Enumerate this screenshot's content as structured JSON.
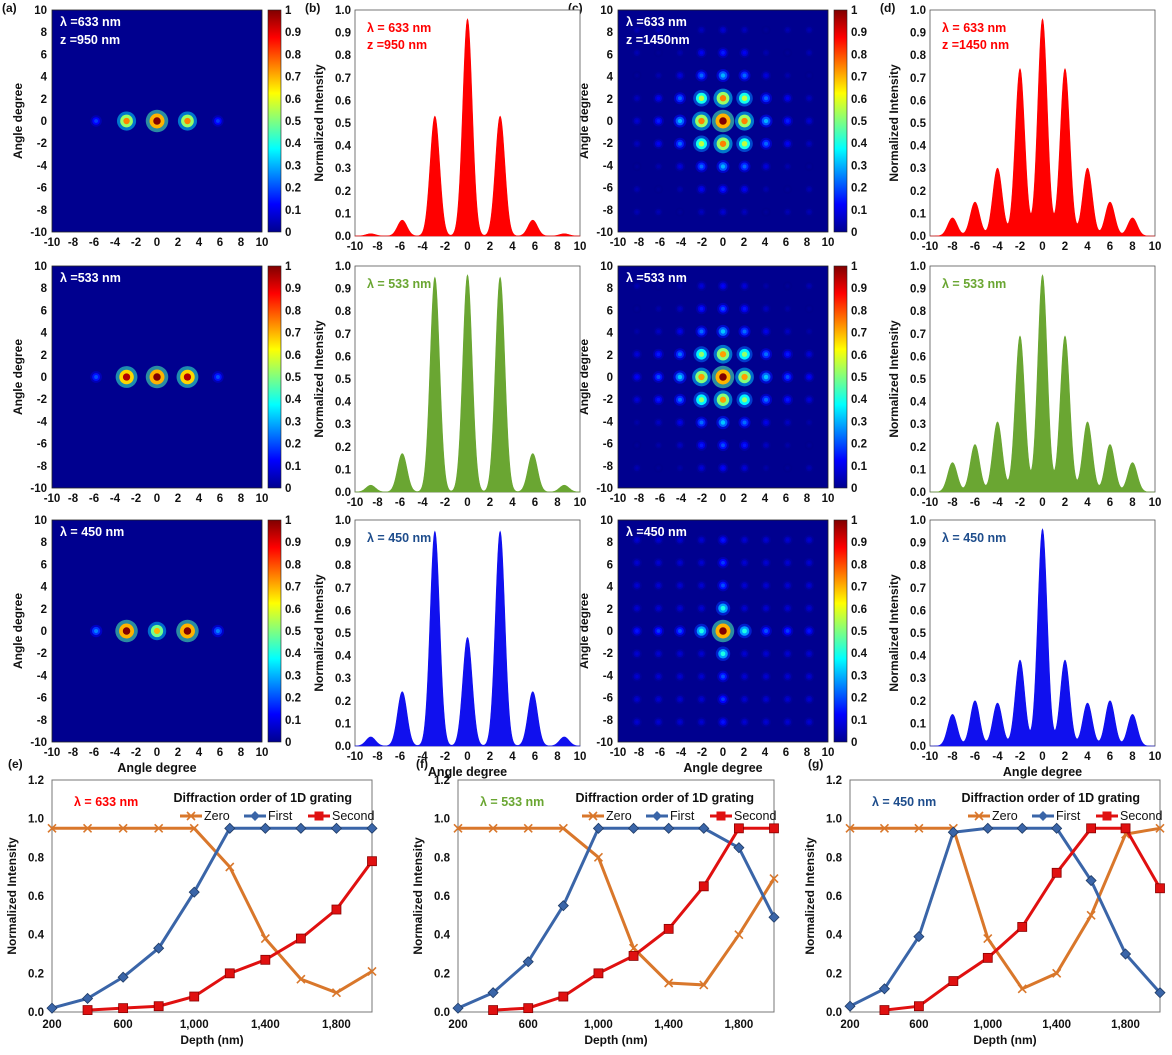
{
  "figure": {
    "maps": [
      {
        "label": "(a)",
        "row": 0,
        "xlabel": "",
        "ylabel": "Angle degree",
        "texts": [
          "λ =633 nm",
          "z =950 nm"
        ],
        "text_color": "#ffffff",
        "kind": "1d",
        "n": 2,
        "peaks": [
          [
            0,
            1.0
          ],
          [
            -2.9,
            0.75
          ],
          [
            2.9,
            0.75
          ],
          [
            -5.8,
            0.18
          ],
          [
            5.8,
            0.18
          ]
        ]
      },
      {
        "label": "",
        "row": 1,
        "xlabel": "",
        "ylabel": "Angle degree",
        "texts": [
          "λ =533 nm"
        ],
        "text_color": "#ffffff",
        "kind": "1d",
        "n": 2,
        "peaks": [
          [
            0,
            1.0
          ],
          [
            -2.9,
            0.95
          ],
          [
            2.9,
            0.95
          ],
          [
            -5.8,
            0.2
          ],
          [
            5.8,
            0.2
          ]
        ]
      },
      {
        "label": "",
        "row": 2,
        "xlabel": "Angle degree",
        "ylabel": "Angle degree",
        "texts": [
          "λ = 450 nm"
        ],
        "text_color": "#ffffff",
        "kind": "1d",
        "n": 2,
        "peaks": [
          [
            0,
            0.7
          ],
          [
            -2.9,
            1.0
          ],
          [
            2.9,
            1.0
          ],
          [
            -5.8,
            0.25
          ],
          [
            5.8,
            0.25
          ]
        ]
      },
      {
        "label": "(c)",
        "row": 0,
        "xlabel": "",
        "ylabel": "Angle degree",
        "texts": [
          "λ =633 nm",
          "z =1450nm"
        ],
        "text_color": "#ffffff",
        "kind": "2d",
        "n": 1,
        "profile": [
          1.0,
          0.75,
          0.3,
          0.15,
          0.08
        ]
      },
      {
        "label": "",
        "row": 1,
        "xlabel": "",
        "ylabel": "Angle degree",
        "texts": [
          "λ =533 nm"
        ],
        "text_color": "#ffffff",
        "kind": "2d",
        "n": 1,
        "profile": [
          1.0,
          0.72,
          0.32,
          0.2,
          0.12
        ]
      },
      {
        "label": "",
        "row": 2,
        "xlabel": "Angle degree",
        "ylabel": "Angle degree",
        "texts": [
          "λ =450 nm"
        ],
        "text_color": "#ffffff",
        "kind": "cross",
        "n": 1,
        "profile": [
          1.0,
          0.4,
          0.2,
          0.18,
          0.14
        ]
      }
    ],
    "colorbar_ticks": [
      "0",
      "0.1",
      "0.2",
      "0.3",
      "0.4",
      "0.5",
      "0.6",
      "0.7",
      "0.8",
      "0.9",
      "1"
    ],
    "profiles": [
      {
        "label": "(b)",
        "row": 0,
        "color": "#ff0000",
        "ylabel": "Normalized Intensity",
        "xlabel": "",
        "texts": [
          "λ = 633 nm",
          "z =950 nm"
        ],
        "text_color": "#ff0000",
        "tick_step": 2,
        "peaks": [
          [
            0,
            0.96
          ],
          [
            -2.9,
            0.53
          ],
          [
            2.9,
            0.53
          ],
          [
            -5.8,
            0.07
          ],
          [
            5.8,
            0.07
          ],
          [
            -8.6,
            0.01
          ],
          [
            8.6,
            0.01
          ]
        ]
      },
      {
        "label": "",
        "row": 1,
        "color": "#6aa632",
        "ylabel": "Normalized Intensity",
        "xlabel": "",
        "texts": [
          "λ = 533 nm"
        ],
        "text_color": "#6aa632",
        "tick_step": 2,
        "peaks": [
          [
            0,
            0.96
          ],
          [
            -2.9,
            0.95
          ],
          [
            2.9,
            0.95
          ],
          [
            -5.8,
            0.17
          ],
          [
            5.8,
            0.17
          ],
          [
            -8.6,
            0.03
          ],
          [
            8.6,
            0.03
          ]
        ]
      },
      {
        "label": "",
        "row": 2,
        "color": "#1010ee",
        "ylabel": "Normalized Intensity",
        "xlabel": "Angle degree",
        "texts": [
          "λ = 450 nm"
        ],
        "text_color": "#1e4d8c",
        "tick_step": 2,
        "peaks": [
          [
            0,
            0.48
          ],
          [
            -2.9,
            0.95
          ],
          [
            2.9,
            0.95
          ],
          [
            -5.8,
            0.24
          ],
          [
            5.8,
            0.24
          ],
          [
            -8.6,
            0.04
          ],
          [
            8.6,
            0.04
          ]
        ]
      },
      {
        "label": "(d)",
        "row": 0,
        "color": "#ff0000",
        "ylabel": "Normalized Intensity",
        "xlabel": "",
        "texts": [
          "λ = 633 nm",
          "z =1450 nm"
        ],
        "text_color": "#ff0000",
        "tick_step": 2,
        "peaks": [
          [
            0,
            0.96
          ],
          [
            -2,
            0.74
          ],
          [
            2,
            0.74
          ],
          [
            -4,
            0.3
          ],
          [
            4,
            0.3
          ],
          [
            -6,
            0.15
          ],
          [
            6,
            0.15
          ],
          [
            -8,
            0.08
          ],
          [
            8,
            0.08
          ]
        ]
      },
      {
        "label": "",
        "row": 1,
        "color": "#6aa632",
        "ylabel": "Normalized Intensity",
        "xlabel": "",
        "texts": [
          "λ = 533 nm"
        ],
        "text_color": "#6aa632",
        "tick_step": 2,
        "peaks": [
          [
            0,
            0.96
          ],
          [
            -2,
            0.69
          ],
          [
            2,
            0.69
          ],
          [
            -4,
            0.31
          ],
          [
            4,
            0.31
          ],
          [
            -6,
            0.21
          ],
          [
            6,
            0.21
          ],
          [
            -8,
            0.13
          ],
          [
            8,
            0.13
          ]
        ]
      },
      {
        "label": "",
        "row": 2,
        "color": "#1010ee",
        "ylabel": "Normalized Intensity",
        "xlabel": "Angle degree",
        "texts": [
          "λ = 450 nm"
        ],
        "text_color": "#1e4d8c",
        "tick_step": 2,
        "peaks": [
          [
            0,
            0.96
          ],
          [
            -2,
            0.38
          ],
          [
            2,
            0.38
          ],
          [
            -4,
            0.19
          ],
          [
            4,
            0.19
          ],
          [
            -6,
            0.2
          ],
          [
            6,
            0.2
          ],
          [
            -8,
            0.14
          ],
          [
            8,
            0.14
          ]
        ]
      }
    ],
    "grating_legend_title": "Diffraction order of 1D grating",
    "grating_series_names": [
      "Zero",
      "First",
      "Second"
    ],
    "grating_colors": [
      "#d9772b",
      "#3a65a8",
      "#e01010"
    ],
    "grating_xticks": [
      "200",
      "600",
      "1,000",
      "1,400",
      "1,800"
    ],
    "grating_yticks": [
      "0.0",
      "0.2",
      "0.4",
      "0.6",
      "0.8",
      "1.0",
      "1.2"
    ],
    "grating_xlabel": "Depth (nm)",
    "grating_ylabel": "Normalized Intensity"
  },
  "chart_data": [
    {
      "type": "heatmap",
      "panel": "(a)",
      "title": "λ =633 nm, z =950 nm",
      "ylabel": "Angle degree",
      "xlim": [
        -10,
        10
      ],
      "ylim": [
        -10,
        10
      ],
      "spots_deg": [
        -5.8,
        -2.9,
        0,
        2.9,
        5.8
      ]
    },
    {
      "type": "heatmap",
      "panel": "(a)",
      "title": "λ =533 nm",
      "ylabel": "Angle degree",
      "xlim": [
        -10,
        10
      ],
      "ylim": [
        -10,
        10
      ],
      "spots_deg": [
        -5.8,
        -2.9,
        0,
        2.9,
        5.8
      ]
    },
    {
      "type": "heatmap",
      "panel": "(a)",
      "title": "λ = 450 nm",
      "xlabel": "Angle degree",
      "ylabel": "Angle degree",
      "xlim": [
        -10,
        10
      ],
      "ylim": [
        -10,
        10
      ],
      "spots_deg": [
        -5.8,
        -2.9,
        0,
        2.9,
        5.8
      ]
    },
    {
      "type": "area",
      "panel": "(b)",
      "title": "λ = 633 nm, z =950 nm",
      "ylabel": "Normalized Intensity",
      "x": [
        -8.6,
        -5.8,
        -2.9,
        0,
        2.9,
        5.8,
        8.6
      ],
      "values": [
        0.01,
        0.07,
        0.53,
        0.96,
        0.53,
        0.07,
        0.01
      ],
      "xlim": [
        -10,
        10
      ],
      "ylim": [
        0,
        1
      ]
    },
    {
      "type": "area",
      "panel": "(b)",
      "title": "λ = 533 nm",
      "ylabel": "Normalized Intensity",
      "x": [
        -8.6,
        -5.8,
        -2.9,
        0,
        2.9,
        5.8,
        8.6
      ],
      "values": [
        0.03,
        0.17,
        0.95,
        0.96,
        0.95,
        0.17,
        0.03
      ],
      "xlim": [
        -10,
        10
      ],
      "ylim": [
        0,
        1
      ]
    },
    {
      "type": "area",
      "panel": "(b)",
      "title": "λ = 450 nm",
      "xlabel": "Angle degree",
      "ylabel": "Normalized Intensity",
      "x": [
        -8.6,
        -5.8,
        -2.9,
        0,
        2.9,
        5.8,
        8.6
      ],
      "values": [
        0.04,
        0.24,
        0.95,
        0.48,
        0.95,
        0.24,
        0.04
      ],
      "xlim": [
        -10,
        10
      ],
      "ylim": [
        0,
        1
      ]
    },
    {
      "type": "heatmap",
      "panel": "(c)",
      "title": "λ =633 nm, z =1450nm",
      "ylabel": "Angle degree",
      "xlim": [
        -10,
        10
      ],
      "ylim": [
        -10,
        10
      ],
      "grid_spacing_deg": 2
    },
    {
      "type": "heatmap",
      "panel": "(c)",
      "title": "λ =533 nm",
      "ylabel": "Angle degree",
      "xlim": [
        -10,
        10
      ],
      "ylim": [
        -10,
        10
      ],
      "grid_spacing_deg": 2
    },
    {
      "type": "heatmap",
      "panel": "(c)",
      "title": "λ =450 nm",
      "xlabel": "Angle degree",
      "ylabel": "Angle degree",
      "xlim": [
        -10,
        10
      ],
      "ylim": [
        -10,
        10
      ],
      "grid_spacing_deg": 2
    },
    {
      "type": "area",
      "panel": "(d)",
      "title": "λ = 633 nm, z =1450 nm",
      "ylabel": "Normalized Intensity",
      "x": [
        -8,
        -6,
        -4,
        -2,
        0,
        2,
        4,
        6,
        8
      ],
      "values": [
        0.08,
        0.15,
        0.3,
        0.74,
        0.96,
        0.74,
        0.3,
        0.15,
        0.08
      ],
      "xlim": [
        -10,
        10
      ],
      "ylim": [
        0,
        1
      ]
    },
    {
      "type": "area",
      "panel": "(d)",
      "title": "λ = 533 nm",
      "ylabel": "Normalized Intensity",
      "x": [
        -8,
        -6,
        -4,
        -2,
        0,
        2,
        4,
        6,
        8
      ],
      "values": [
        0.13,
        0.21,
        0.31,
        0.69,
        0.96,
        0.69,
        0.31,
        0.21,
        0.13
      ],
      "xlim": [
        -10,
        10
      ],
      "ylim": [
        0,
        1
      ]
    },
    {
      "type": "area",
      "panel": "(d)",
      "title": "λ = 450 nm",
      "xlabel": "Angle degree",
      "ylabel": "Normalized Intensity",
      "x": [
        -8,
        -6,
        -4,
        -2,
        0,
        2,
        4,
        6,
        8
      ],
      "values": [
        0.14,
        0.2,
        0.19,
        0.38,
        0.96,
        0.38,
        0.19,
        0.2,
        0.14
      ],
      "xlim": [
        -10,
        10
      ],
      "ylim": [
        0,
        1
      ]
    },
    {
      "type": "line",
      "panel": "(e)",
      "title": "λ = 633 nm",
      "legend_title": "Diffraction order of 1D grating",
      "xlabel": "Depth (nm)",
      "ylabel": "Normalized Intensity",
      "xlim": [
        200,
        2000
      ],
      "ylim": [
        0,
        1.2
      ],
      "legend": "top-right",
      "series": [
        {
          "name": "Zero",
          "x": [
            200,
            400,
            600,
            800,
            1000,
            1200,
            1400,
            1600,
            1800,
            2000
          ],
          "values": [
            0.95,
            0.95,
            0.95,
            0.95,
            0.95,
            0.75,
            0.38,
            0.17,
            0.1,
            0.21
          ]
        },
        {
          "name": "First",
          "x": [
            200,
            400,
            600,
            800,
            1000,
            1200,
            1400,
            1600,
            1800,
            2000
          ],
          "values": [
            0.02,
            0.07,
            0.18,
            0.33,
            0.62,
            0.95,
            0.95,
            0.95,
            0.95,
            0.95
          ]
        },
        {
          "name": "Second",
          "x": [
            400,
            600,
            800,
            1000,
            1200,
            1400,
            1600,
            1800,
            2000
          ],
          "values": [
            0.01,
            0.02,
            0.03,
            0.08,
            0.2,
            0.27,
            0.38,
            0.53,
            0.78
          ]
        }
      ]
    },
    {
      "type": "line",
      "panel": "(f)",
      "title": "λ = 533 nm",
      "legend_title": "Diffraction order of 1D grating",
      "xlabel": "Depth (nm)",
      "ylabel": "Normalized Intensity",
      "xlim": [
        200,
        2000
      ],
      "ylim": [
        0,
        1.2
      ],
      "legend": "top-right",
      "series": [
        {
          "name": "Zero",
          "x": [
            200,
            400,
            600,
            800,
            1000,
            1200,
            1400,
            1600,
            1800,
            2000
          ],
          "values": [
            0.95,
            0.95,
            0.95,
            0.95,
            0.8,
            0.33,
            0.15,
            0.14,
            0.4,
            0.69
          ]
        },
        {
          "name": "First",
          "x": [
            200,
            400,
            600,
            800,
            1000,
            1200,
            1400,
            1600,
            1800,
            2000
          ],
          "values": [
            0.02,
            0.1,
            0.26,
            0.55,
            0.95,
            0.95,
            0.95,
            0.95,
            0.85,
            0.49
          ]
        },
        {
          "name": "Second",
          "x": [
            400,
            600,
            800,
            1000,
            1200,
            1400,
            1600,
            1800,
            2000
          ],
          "values": [
            0.01,
            0.02,
            0.08,
            0.2,
            0.29,
            0.43,
            0.65,
            0.95,
            0.95
          ]
        }
      ]
    },
    {
      "type": "line",
      "panel": "(g)",
      "title": "λ = 450 nm",
      "legend_title": "Diffraction order of 1D grating",
      "xlabel": "Depth (nm)",
      "ylabel": "Normalized Intensity",
      "xlim": [
        200,
        2000
      ],
      "ylim": [
        0,
        1.2
      ],
      "legend": "top-right",
      "series": [
        {
          "name": "Zero",
          "x": [
            200,
            400,
            600,
            800,
            1000,
            1200,
            1400,
            1600,
            1800,
            2000
          ],
          "values": [
            0.95,
            0.95,
            0.95,
            0.95,
            0.38,
            0.12,
            0.2,
            0.5,
            0.92,
            0.95
          ]
        },
        {
          "name": "First",
          "x": [
            200,
            400,
            600,
            800,
            1000,
            1200,
            1400,
            1600,
            1800,
            2000
          ],
          "values": [
            0.03,
            0.12,
            0.39,
            0.93,
            0.95,
            0.95,
            0.95,
            0.68,
            0.3,
            0.1
          ]
        },
        {
          "name": "Second",
          "x": [
            400,
            600,
            800,
            1000,
            1200,
            1400,
            1600,
            1800,
            2000
          ],
          "values": [
            0.01,
            0.03,
            0.16,
            0.28,
            0.44,
            0.72,
            0.95,
            0.95,
            0.64
          ]
        }
      ]
    }
  ]
}
